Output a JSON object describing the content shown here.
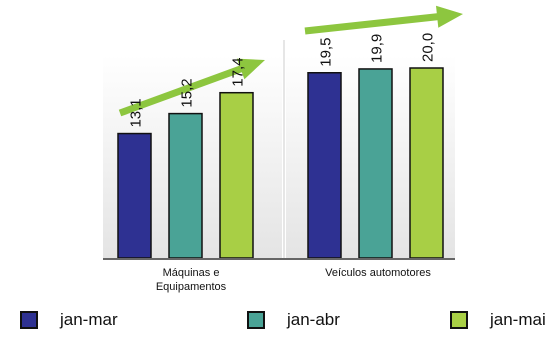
{
  "chart_data": {
    "type": "bar",
    "categories": [
      "Máquinas e Equipamentos",
      "Veículos automotores"
    ],
    "category_lines": [
      [
        "Máquinas e",
        "Equipamentos"
      ],
      [
        "Veículos automotores"
      ]
    ],
    "series": [
      {
        "name": "jan-mar",
        "values": [
          13.1,
          19.5
        ],
        "labels": [
          "13,1",
          "19,5"
        ],
        "color": "#2e3192"
      },
      {
        "name": "jan-abr",
        "values": [
          15.2,
          19.9
        ],
        "labels": [
          "15,2",
          "19,9"
        ],
        "color": "#4aa396"
      },
      {
        "name": "jan-mai",
        "values": [
          17.4,
          20.0
        ],
        "labels": [
          "17,4",
          "20,0"
        ],
        "color": "#a8cf45"
      }
    ],
    "ylim": [
      0,
      20
    ],
    "grid": false,
    "legend": "bottom",
    "trend_arrows": true,
    "arrow_color": "#8dc63f"
  },
  "legend": [
    {
      "label": "jan-mar",
      "color": "#2e3192"
    },
    {
      "label": "jan-abr",
      "color": "#4aa396"
    },
    {
      "label": "jan-mai",
      "color": "#a8cf45"
    }
  ]
}
